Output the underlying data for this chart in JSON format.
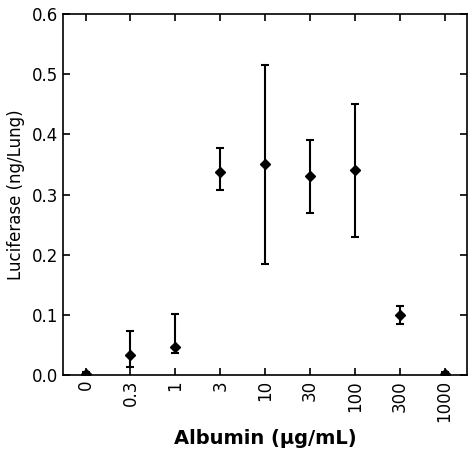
{
  "y_values": [
    0.002,
    0.033,
    0.047,
    0.338,
    0.35,
    0.33,
    0.34,
    0.1,
    0.002
  ],
  "y_err_upper": [
    0.003,
    0.04,
    0.055,
    0.04,
    0.165,
    0.06,
    0.11,
    0.015,
    0.003
  ],
  "y_err_lower": [
    0.002,
    0.02,
    0.01,
    0.03,
    0.165,
    0.06,
    0.11,
    0.015,
    0.002
  ],
  "x_tick_labels": [
    "0",
    "0.3",
    "1",
    "3",
    "10",
    "30",
    "100",
    "300",
    "1000"
  ],
  "x_positions": [
    0,
    1,
    2,
    3,
    4,
    5,
    6,
    7,
    8
  ],
  "xlabel": "Albumin (μg/mL)",
  "ylabel": "Luciferase (ng/Lung)",
  "ylim": [
    0,
    0.6
  ],
  "yticks": [
    0.0,
    0.1,
    0.2,
    0.3,
    0.4,
    0.5,
    0.6
  ],
  "line_color": "black",
  "marker": "D",
  "markersize": 5,
  "linewidth": 1.8,
  "capsize": 3,
  "background_color": "#ffffff",
  "xlabel_fontsize": 14,
  "ylabel_fontsize": 12,
  "tick_labelsize": 12
}
